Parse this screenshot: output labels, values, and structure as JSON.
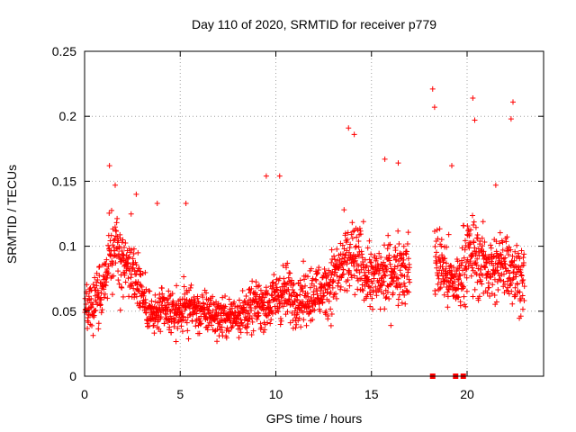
{
  "chart_data": {
    "type": "scatter",
    "title": "Day 110 of 2020, SRMTID for receiver p779",
    "xlabel": "GPS time / hours",
    "ylabel": "SRMTID / TECUs",
    "xlim": [
      0,
      24
    ],
    "ylim": [
      0,
      0.25
    ],
    "grid": true,
    "marker": "plus",
    "marker_color": "#ff0000",
    "x_ticks": [
      {
        "value": 0,
        "label": "0"
      },
      {
        "value": 5,
        "label": "5"
      },
      {
        "value": 10,
        "label": "10"
      },
      {
        "value": 15,
        "label": "15"
      },
      {
        "value": 20,
        "label": "20"
      }
    ],
    "y_ticks": [
      {
        "value": 0,
        "label": "0"
      },
      {
        "value": 0.05,
        "label": "0.05"
      },
      {
        "value": 0.1,
        "label": "0.1"
      },
      {
        "value": 0.15,
        "label": "0.15"
      },
      {
        "value": 0.2,
        "label": "0.2"
      },
      {
        "value": 0.25,
        "label": "0.25"
      }
    ],
    "trend": [
      [
        0.0,
        0.05
      ],
      [
        0.5,
        0.06
      ],
      [
        1.0,
        0.065
      ],
      [
        1.3,
        0.09
      ],
      [
        1.6,
        0.1
      ],
      [
        2.0,
        0.085
      ],
      [
        2.5,
        0.085
      ],
      [
        2.9,
        0.07
      ],
      [
        3.2,
        0.055
      ],
      [
        3.6,
        0.045
      ],
      [
        4.0,
        0.05
      ],
      [
        4.5,
        0.048
      ],
      [
        5.0,
        0.05
      ],
      [
        5.5,
        0.055
      ],
      [
        6.0,
        0.048
      ],
      [
        6.5,
        0.05
      ],
      [
        7.0,
        0.045
      ],
      [
        7.5,
        0.045
      ],
      [
        8.0,
        0.048
      ],
      [
        8.5,
        0.05
      ],
      [
        9.0,
        0.055
      ],
      [
        9.6,
        0.055
      ],
      [
        10.0,
        0.06
      ],
      [
        10.5,
        0.065
      ],
      [
        11.0,
        0.06
      ],
      [
        11.5,
        0.06
      ],
      [
        12.0,
        0.065
      ],
      [
        12.5,
        0.065
      ],
      [
        13.0,
        0.075
      ],
      [
        13.5,
        0.085
      ],
      [
        14.0,
        0.09
      ],
      [
        14.5,
        0.085
      ],
      [
        15.0,
        0.075
      ],
      [
        15.5,
        0.075
      ],
      [
        16.0,
        0.08
      ],
      [
        16.5,
        0.085
      ],
      [
        17.0,
        0.08
      ],
      [
        17.5,
        null
      ],
      [
        18.0,
        null
      ],
      [
        18.3,
        0.09
      ],
      [
        18.7,
        0.085
      ],
      [
        19.0,
        0.075
      ],
      [
        19.5,
        0.07
      ],
      [
        20.0,
        0.095
      ],
      [
        20.5,
        0.09
      ],
      [
        21.0,
        0.085
      ],
      [
        21.5,
        0.08
      ],
      [
        22.0,
        0.09
      ],
      [
        22.5,
        0.08
      ],
      [
        23.0,
        0.075
      ]
    ],
    "extra_points": [
      [
        1.3,
        0.162
      ],
      [
        1.6,
        0.147
      ],
      [
        2.7,
        0.14
      ],
      [
        3.8,
        0.133
      ],
      [
        5.3,
        0.133
      ],
      [
        9.5,
        0.154
      ],
      [
        10.2,
        0.154
      ],
      [
        13.8,
        0.191
      ],
      [
        14.1,
        0.186
      ],
      [
        15.7,
        0.167
      ],
      [
        16.4,
        0.164
      ],
      [
        18.2,
        0.221
      ],
      [
        18.3,
        0.207
      ],
      [
        19.2,
        0.162
      ],
      [
        20.3,
        0.214
      ],
      [
        20.4,
        0.197
      ],
      [
        21.5,
        0.147
      ],
      [
        22.4,
        0.211
      ],
      [
        22.3,
        0.198
      ]
    ],
    "zero_points": [
      [
        18.2,
        0
      ],
      [
        19.4,
        0
      ],
      [
        19.8,
        0
      ]
    ]
  }
}
